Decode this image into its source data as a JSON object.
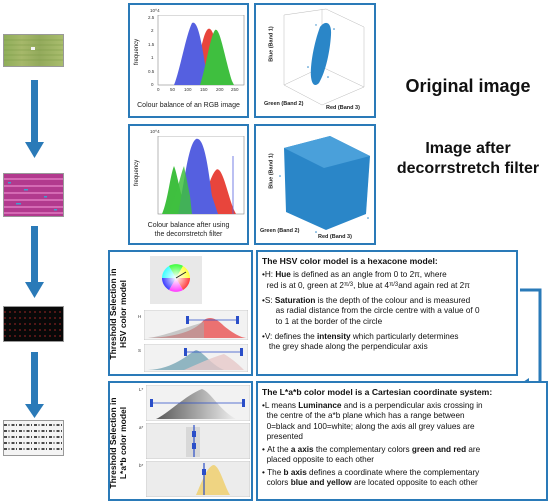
{
  "titles": {
    "original": "Original image",
    "after_line1": "Image after",
    "after_line2": "decorrstretch filter"
  },
  "hist1": {
    "exp": "10^4",
    "ylabel": "frequency",
    "caption": "Colour balance of an RGB image",
    "yticks": [
      "2.5",
      "2",
      "1.5",
      "1",
      "0.5",
      "0"
    ],
    "xticks": [
      "0",
      "50",
      "100",
      "150",
      "200",
      "250"
    ]
  },
  "hist2": {
    "exp": "10^4",
    "ylabel": "frequency",
    "caption_line1": "Colour balance after using",
    "caption_line2": "the decorrstretch filter"
  },
  "scatter1": {
    "xlabel": "Red (Band 3)",
    "ylabel": "Green (Band 2)",
    "zlabel": "Blue (Band 1)"
  },
  "scatter2": {
    "xlabel": "Red (Band 3)",
    "ylabel": "Green (Band 2)",
    "zlabel": "Blue (Band 1)"
  },
  "hsv": {
    "side_line1": "Threshold Selection in",
    "side_line2": "HSV color model",
    "title": "The HSV color model is a hexacone model:",
    "h_label": "H:",
    "h_term": "Hue",
    "h_text1": "is defined as an angle from 0 to 2π, where",
    "h_text2": "red is at 0,  green at 2",
    "h_frac1": "π/3",
    "h_text3": ", blue at 4",
    "h_frac2": "π/3",
    "h_text4": "and again red at 2π",
    "s_label": "S:",
    "s_term": "Saturation",
    "s_text1": "is the depth of the colour and is measured",
    "s_text2": "as radial distance from the circle centre with a value of 0",
    "s_text3": "to 1 at the border of the circle",
    "v_label": "V:",
    "v_text0": "defines the",
    "v_term": "intensity",
    "v_text1": "which particularly determines",
    "v_text2": "the grey shade along the perpendicular axis"
  },
  "lab": {
    "side_line1": "Threshold Selection in",
    "side_line2": "L*a*b color model",
    "title": "The L*a*b color model is a Cartesian coordinate system:",
    "l_text0": "L means",
    "l_term": "Luminance",
    "l_text1": "and is a perpendicular axis crossing in",
    "l_text2": "the centre of the a*b plane which has a range between",
    "l_text3": "0=black and 100=white; along the axis all grey values are",
    "l_text4": "presented",
    "a_text0": "At the",
    "a_term": "a axis",
    "a_text1": "the complementary colors",
    "a_term2": "green and red",
    "a_text2": "are",
    "a_text3": "placed opposite to each other",
    "b_text0": "The",
    "b_term": "b axis",
    "b_text1": "defines a coordinate where the complementary",
    "b_text2": "colors",
    "b_term2": "blue and yellow",
    "b_text3": "are located opposite to each other",
    "ch_l": "L*",
    "ch_a": "a*",
    "ch_b": "b*"
  },
  "colors": {
    "accent": "#2a7ab8",
    "red": "#e8453c",
    "green": "#3fbf3f",
    "blue": "#5560e0",
    "scatter": "#2a86c8"
  }
}
